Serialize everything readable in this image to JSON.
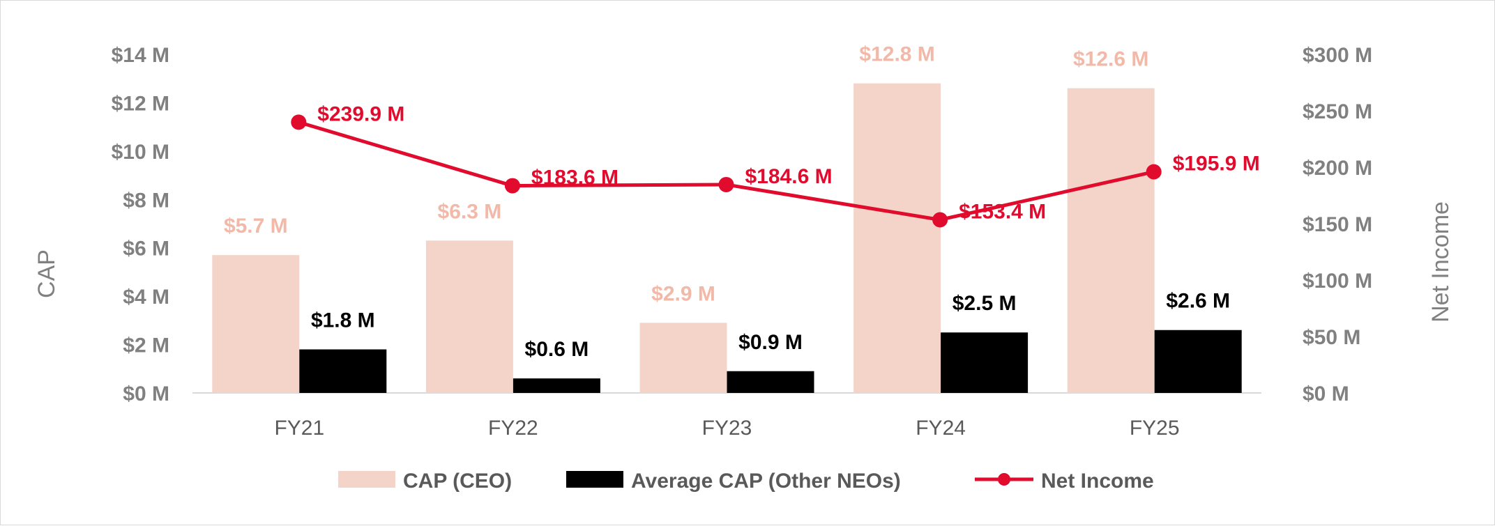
{
  "chart_data": {
    "type": "bar",
    "categories": [
      "FY21",
      "FY22",
      "FY23",
      "FY24",
      "FY25"
    ],
    "series": [
      {
        "name": "CAP (CEO)",
        "kind": "bar",
        "axis": "left",
        "color": "#f4d4c9",
        "values": [
          5.7,
          6.3,
          2.9,
          12.8,
          12.6
        ],
        "labels": [
          "$5.7 M",
          "$6.3 M",
          "$2.9 M",
          "$12.8 M",
          "$12.6 M"
        ]
      },
      {
        "name": "Average CAP (Other NEOs)",
        "kind": "bar",
        "axis": "left",
        "color": "#000000",
        "values": [
          1.8,
          0.6,
          0.9,
          2.5,
          2.6
        ],
        "labels": [
          "$1.8 M",
          "$0.6 M",
          "$0.9 M",
          "$2.5 M",
          "$2.6 M"
        ]
      },
      {
        "name": "Net Income",
        "kind": "line",
        "axis": "right",
        "color": "#e00b2d",
        "values": [
          239.9,
          183.6,
          184.6,
          153.4,
          195.9
        ],
        "labels": [
          "$239.9 M",
          "$183.6 M",
          "$184.6 M",
          "$153.4 M",
          "$195.9 M"
        ]
      }
    ],
    "ylabel": "CAP",
    "ylabel_right": "Net Income",
    "ylim": [
      0,
      14
    ],
    "ylim_right": [
      0,
      300
    ],
    "yticks": [
      "$0 M",
      "$2 M",
      "$4 M",
      "$6 M",
      "$8 M",
      "$10 M",
      "$12 M",
      "$14 M"
    ],
    "yticks_right": [
      "$0 M",
      "$50 M",
      "$100 M",
      "$150 M",
      "$200 M",
      "$250 M",
      "$300 M"
    ],
    "grid": false,
    "legend": "bottom"
  }
}
